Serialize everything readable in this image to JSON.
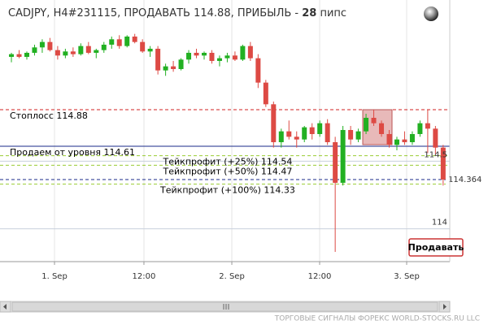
{
  "chart_data": {
    "type": "candlestick",
    "title": "CADJPY, H4#231115, ПРОДАВАТЬ 114.88, ПРИБЫЛЬ - ",
    "profit": 28,
    "profit_unit": "пипс",
    "x": [
      0,
      1,
      2,
      3,
      4,
      5,
      6,
      7,
      8,
      9,
      10,
      11,
      12,
      13,
      14,
      15,
      16,
      17,
      18,
      19,
      20,
      21,
      22,
      23,
      24,
      25,
      26,
      27,
      28,
      29,
      30,
      31,
      32,
      33,
      34,
      35,
      36,
      37,
      38,
      39,
      40,
      41,
      42,
      43,
      44,
      45,
      46,
      47,
      48,
      49,
      50,
      51,
      52,
      53,
      54,
      55,
      56
    ],
    "open": [
      115.27,
      115.29,
      115.27,
      115.3,
      115.34,
      115.38,
      115.32,
      115.28,
      115.31,
      115.29,
      115.35,
      115.3,
      115.32,
      115.36,
      115.4,
      115.35,
      115.42,
      115.38,
      115.31,
      115.33,
      115.17,
      115.2,
      115.18,
      115.25,
      115.3,
      115.28,
      115.3,
      115.24,
      115.26,
      115.28,
      115.25,
      115.35,
      115.26,
      115.08,
      114.92,
      114.64,
      114.72,
      114.68,
      114.66,
      114.75,
      114.7,
      114.78,
      114.64,
      114.34,
      114.73,
      114.66,
      114.72,
      114.82,
      114.78,
      114.7,
      114.62,
      114.66,
      114.64,
      114.7,
      114.78,
      114.74,
      114.6
    ],
    "high": [
      115.3,
      115.32,
      115.31,
      115.36,
      115.4,
      115.41,
      115.35,
      115.33,
      115.34,
      115.37,
      115.38,
      115.33,
      115.38,
      115.42,
      115.43,
      115.43,
      115.44,
      115.4,
      115.35,
      115.35,
      115.22,
      115.24,
      115.26,
      115.32,
      115.33,
      115.31,
      115.32,
      115.28,
      115.3,
      115.31,
      115.36,
      115.38,
      115.29,
      115.1,
      114.94,
      114.74,
      114.8,
      114.72,
      114.76,
      114.78,
      114.8,
      114.81,
      114.68,
      114.76,
      114.76,
      114.74,
      114.85,
      114.88,
      114.8,
      114.73,
      114.68,
      114.72,
      114.72,
      114.8,
      114.88,
      114.76,
      114.62
    ],
    "low": [
      115.23,
      115.26,
      115.25,
      115.28,
      115.3,
      115.31,
      115.25,
      115.26,
      115.27,
      115.28,
      115.29,
      115.26,
      115.3,
      115.33,
      115.33,
      115.34,
      115.37,
      115.3,
      115.27,
      115.14,
      115.13,
      115.16,
      115.17,
      115.22,
      115.26,
      115.25,
      115.22,
      115.2,
      115.23,
      115.24,
      115.24,
      115.24,
      115.04,
      114.9,
      114.6,
      114.6,
      114.66,
      114.6,
      114.64,
      114.66,
      114.68,
      114.62,
      113.83,
      114.32,
      114.62,
      114.64,
      114.7,
      114.76,
      114.68,
      114.6,
      114.58,
      114.62,
      114.62,
      114.68,
      114.56,
      114.55,
      114.32
    ],
    "close": [
      115.29,
      115.27,
      115.3,
      115.34,
      115.38,
      115.32,
      115.28,
      115.31,
      115.29,
      115.35,
      115.3,
      115.32,
      115.36,
      115.4,
      115.35,
      115.42,
      115.38,
      115.31,
      115.33,
      115.17,
      115.2,
      115.18,
      115.25,
      115.3,
      115.28,
      115.3,
      115.24,
      115.26,
      115.28,
      115.25,
      115.35,
      115.26,
      115.08,
      114.92,
      114.64,
      114.72,
      114.68,
      114.66,
      114.75,
      114.7,
      114.78,
      114.64,
      114.34,
      114.73,
      114.66,
      114.72,
      114.82,
      114.78,
      114.7,
      114.62,
      114.66,
      114.64,
      114.7,
      114.78,
      114.74,
      114.6,
      114.364
    ],
    "up_color": "#22b022",
    "down_color": "#dd4a44",
    "xlim": [
      -1.48,
      56.86
    ],
    "xticks": [
      {
        "value": 5.59,
        "label": "1. Sep"
      },
      {
        "value": 17.19,
        "label": "12:00"
      },
      {
        "value": 28.59,
        "label": "2. Sep"
      },
      {
        "value": 39.98,
        "label": "12:00"
      },
      {
        "value": 51.27,
        "label": "3. Sep"
      }
    ],
    "ylim": [
      113.758,
      115.69
    ],
    "yticks": [
      114.5,
      114
    ],
    "levels": [
      {
        "label": "Стоплосс 114.88",
        "value": 114.88,
        "color": "#d02020",
        "style": "dashed",
        "align": "left"
      },
      {
        "label": "Продаем от уровня 114.61",
        "value": 114.61,
        "color": "#1a2a8a",
        "style": "solid",
        "align": "left"
      },
      {
        "label": "Тейкпрофит (+25%) 114.54",
        "value": 114.54,
        "color": "#99cc33",
        "style": "dashed",
        "align": "center"
      },
      {
        "label": "Тейкпрофит (+50%) 114.47",
        "value": 114.47,
        "color": "#99cc33",
        "style": "dashed",
        "align": "center"
      },
      {
        "label": "Тейкпрофит (+100%) 114.33",
        "value": 114.33,
        "color": "#99cc33",
        "style": "dashed",
        "align": "center"
      }
    ],
    "button": "Продавать"
  },
  "footer": "ТОРГОВЫЕ СИГНАЛЫ ФОРЕКС WORLD-STOCKS.RU LLC"
}
